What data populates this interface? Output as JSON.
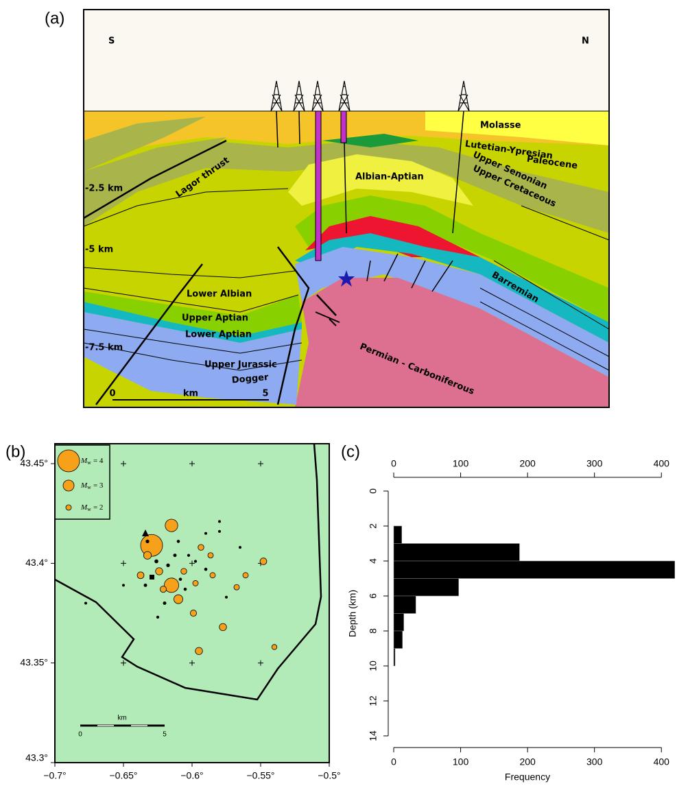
{
  "cross_section": {
    "panel_label": "(a)",
    "south": "S",
    "north": "N",
    "layers": {
      "molasse": "Molasse",
      "lutetian": "Lutetian-Ypresian",
      "paleocene": "Paleocene",
      "senonian": "Upper Senonian",
      "cretaceous": "Upper Cretaceous",
      "albian_aptian": "Albian-Aptian",
      "lagor": "Lagor thrust",
      "lower_albian": "Lower Albian",
      "upper_aptian": "Upper Aptian",
      "lower_aptian": "Lower Aptian",
      "jurassic": "Upper Jurassic",
      "dogger": "Dogger",
      "barremian": "Barremian",
      "permian": "Permian - Carboniferous"
    },
    "depth_labels": [
      "-2.5 km",
      "-5 km",
      "-7.5 km"
    ],
    "scale": {
      "start": "0",
      "unit": "km",
      "end": "5"
    }
  },
  "map": {
    "panel_label": "(b)",
    "xlim": [
      -0.7,
      -0.5
    ],
    "ylim": [
      43.3,
      43.46
    ],
    "xticks": [
      {
        "value": -0.7,
        "label": "−0.7°"
      },
      {
        "value": -0.65,
        "label": "−0.65°"
      },
      {
        "value": -0.6,
        "label": "−0.6°"
      },
      {
        "value": -0.55,
        "label": "−0.55°"
      },
      {
        "value": -0.5,
        "label": "−0.5°"
      }
    ],
    "yticks": [
      {
        "value": 43.3,
        "label": "43.3°"
      },
      {
        "value": 43.35,
        "label": "43.35°"
      },
      {
        "value": 43.4,
        "label": "43.4°"
      },
      {
        "value": 43.45,
        "label": "43.45°"
      }
    ],
    "mw_symbol": "M",
    "mw_subscript": "w",
    "legend": [
      {
        "mag": 4,
        "label": "= 4"
      },
      {
        "mag": 3,
        "label": "= 3"
      },
      {
        "mag": 2,
        "label": "= 2"
      }
    ],
    "events": {
      "lon": [
        -0.6295,
        -0.615,
        -0.615,
        -0.61,
        -0.595,
        -0.5775,
        -0.548,
        -0.5935,
        -0.561,
        -0.5675,
        -0.5865,
        -0.54,
        -0.599,
        -0.6375,
        -0.624,
        -0.6325,
        -0.621,
        -0.606,
        -0.5975,
        -0.585,
        -0.61,
        -0.6025,
        -0.59,
        -0.58,
        -0.62,
        -0.605,
        -0.65,
        -0.625,
        -0.575,
        -0.565,
        -0.59,
        -0.6125,
        -0.6175,
        -0.6775,
        -0.58,
        -0.6325,
        -0.6085,
        -0.626,
        -0.634,
        -0.5975
      ],
      "lat": [
        43.409,
        43.419,
        43.389,
        43.382,
        43.356,
        43.368,
        43.401,
        43.408,
        43.394,
        43.388,
        43.404,
        43.358,
        43.375,
        43.394,
        43.396,
        43.404,
        43.387,
        43.396,
        43.39,
        43.394,
        43.411,
        43.404,
        43.415,
        43.416,
        43.38,
        43.387,
        43.389,
        43.373,
        43.383,
        43.408,
        43.397,
        43.404,
        43.399,
        43.38,
        43.421,
        43.411,
        43.392,
        43.401,
        43.389,
        43.401
      ],
      "mag": [
        4.0,
        3.2,
        3.4,
        2.7,
        2.4,
        2.4,
        2.3,
        2.1,
        2.0,
        2.0,
        2.0,
        1.9,
        2.2,
        2.3,
        2.4,
        2.5,
        2.2,
        2.1,
        2.0,
        2.0,
        1.2,
        1.1,
        1.0,
        1.0,
        1.3,
        1.2,
        1.0,
        1.1,
        1.0,
        1.0,
        1.2,
        1.3,
        1.4,
        1.0,
        1.0,
        1.4,
        1.2,
        1.5,
        1.3,
        1.1
      ]
    },
    "scale": {
      "start": "0",
      "unit": "km",
      "end": "5"
    }
  },
  "chart_data": {
    "type": "histogram",
    "panel_label": "(c)",
    "orientation": "horizontal",
    "bins": [
      2,
      3,
      4,
      5,
      6,
      7,
      8,
      9,
      10
    ],
    "counts": [
      12,
      188,
      420,
      97,
      33,
      15,
      13,
      2
    ],
    "xlim": [
      0,
      410
    ],
    "xticks": [
      0,
      100,
      200,
      300,
      400
    ],
    "ylim": [
      0,
      14
    ],
    "yticks": [
      0,
      2,
      4,
      6,
      8,
      10,
      12,
      14
    ],
    "xlabel": "Frequency",
    "ylabel": "Depth (km)",
    "color": "#000000"
  }
}
